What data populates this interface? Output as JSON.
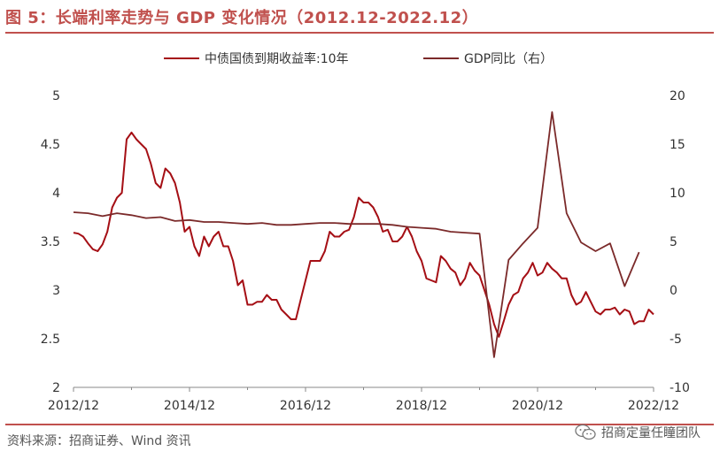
{
  "header": {
    "title": "图 5：长端利率走势与 GDP 变化情况（2012.12-2022.12）"
  },
  "footer": {
    "source": "资料来源：招商证券、Wind 资讯",
    "watermark": "招商定量任瞳团队"
  },
  "icons": {
    "watermark_icon": "wechat-icon"
  },
  "colors": {
    "accent": "#c0504d",
    "yield_series": "#a50f15",
    "gdp_series": "#7b2a2a"
  },
  "chart_data": {
    "type": "line",
    "x_axis": {
      "ticks": [
        "2012/12",
        "2014/12",
        "2016/12",
        "2018/12",
        "2020/12",
        "2022/12"
      ],
      "range": [
        "2012-12",
        "2022-12"
      ]
    },
    "y_left": {
      "ticks": [
        "2",
        "2.5",
        "3",
        "3.5",
        "4",
        "4.5",
        "5"
      ],
      "ylim": [
        2,
        5
      ]
    },
    "y_right": {
      "ticks": [
        "-10",
        "-5",
        "0",
        "5",
        "10",
        "15",
        "20"
      ],
      "ylim": [
        -10,
        20
      ]
    },
    "grid": false,
    "legend_position": "top-center",
    "series": [
      {
        "name": "中债国债到期收益率:10年",
        "axis": "left",
        "points": [
          [
            "2012-12",
            3.59
          ],
          [
            "2013-01",
            3.58
          ],
          [
            "2013-02",
            3.55
          ],
          [
            "2013-03",
            3.48
          ],
          [
            "2013-04",
            3.42
          ],
          [
            "2013-05",
            3.4
          ],
          [
            "2013-06",
            3.47
          ],
          [
            "2013-07",
            3.6
          ],
          [
            "2013-08",
            3.85
          ],
          [
            "2013-09",
            3.95
          ],
          [
            "2013-10",
            4.0
          ],
          [
            "2013-11",
            4.55
          ],
          [
            "2013-12",
            4.62
          ],
          [
            "2014-01",
            4.55
          ],
          [
            "2014-02",
            4.5
          ],
          [
            "2014-03",
            4.45
          ],
          [
            "2014-04",
            4.3
          ],
          [
            "2014-05",
            4.1
          ],
          [
            "2014-06",
            4.05
          ],
          [
            "2014-07",
            4.25
          ],
          [
            "2014-08",
            4.2
          ],
          [
            "2014-09",
            4.1
          ],
          [
            "2014-10",
            3.9
          ],
          [
            "2014-11",
            3.6
          ],
          [
            "2014-12",
            3.65
          ],
          [
            "2015-01",
            3.45
          ],
          [
            "2015-02",
            3.35
          ],
          [
            "2015-03",
            3.55
          ],
          [
            "2015-04",
            3.45
          ],
          [
            "2015-05",
            3.55
          ],
          [
            "2015-06",
            3.6
          ],
          [
            "2015-07",
            3.45
          ],
          [
            "2015-08",
            3.45
          ],
          [
            "2015-09",
            3.3
          ],
          [
            "2015-10",
            3.05
          ],
          [
            "2015-11",
            3.1
          ],
          [
            "2015-12",
            2.85
          ],
          [
            "2016-01",
            2.85
          ],
          [
            "2016-02",
            2.88
          ],
          [
            "2016-03",
            2.88
          ],
          [
            "2016-04",
            2.95
          ],
          [
            "2016-05",
            2.9
          ],
          [
            "2016-06",
            2.9
          ],
          [
            "2016-07",
            2.8
          ],
          [
            "2016-08",
            2.75
          ],
          [
            "2016-09",
            2.7
          ],
          [
            "2016-10",
            2.7
          ],
          [
            "2016-11",
            2.9
          ],
          [
            "2016-12",
            3.1
          ],
          [
            "2017-01",
            3.3
          ],
          [
            "2017-02",
            3.3
          ],
          [
            "2017-03",
            3.3
          ],
          [
            "2017-04",
            3.4
          ],
          [
            "2017-05",
            3.6
          ],
          [
            "2017-06",
            3.55
          ],
          [
            "2017-07",
            3.55
          ],
          [
            "2017-08",
            3.6
          ],
          [
            "2017-09",
            3.62
          ],
          [
            "2017-10",
            3.75
          ],
          [
            "2017-11",
            3.95
          ],
          [
            "2017-12",
            3.9
          ],
          [
            "2018-01",
            3.9
          ],
          [
            "2018-02",
            3.85
          ],
          [
            "2018-03",
            3.75
          ],
          [
            "2018-04",
            3.6
          ],
          [
            "2018-05",
            3.62
          ],
          [
            "2018-06",
            3.5
          ],
          [
            "2018-07",
            3.5
          ],
          [
            "2018-08",
            3.55
          ],
          [
            "2018-09",
            3.65
          ],
          [
            "2018-10",
            3.55
          ],
          [
            "2018-11",
            3.4
          ],
          [
            "2018-12",
            3.3
          ],
          [
            "2019-01",
            3.12
          ],
          [
            "2019-02",
            3.1
          ],
          [
            "2019-03",
            3.08
          ],
          [
            "2019-04",
            3.35
          ],
          [
            "2019-05",
            3.3
          ],
          [
            "2019-06",
            3.22
          ],
          [
            "2019-07",
            3.18
          ],
          [
            "2019-08",
            3.05
          ],
          [
            "2019-09",
            3.12
          ],
          [
            "2019-10",
            3.28
          ],
          [
            "2019-11",
            3.2
          ],
          [
            "2019-12",
            3.15
          ],
          [
            "2020-01",
            3.0
          ],
          [
            "2020-02",
            2.85
          ],
          [
            "2020-03",
            2.65
          ],
          [
            "2020-04",
            2.52
          ],
          [
            "2020-05",
            2.68
          ],
          [
            "2020-06",
            2.85
          ],
          [
            "2020-07",
            2.95
          ],
          [
            "2020-08",
            2.98
          ],
          [
            "2020-09",
            3.12
          ],
          [
            "2020-10",
            3.18
          ],
          [
            "2020-11",
            3.28
          ],
          [
            "2020-12",
            3.15
          ],
          [
            "2021-01",
            3.18
          ],
          [
            "2021-02",
            3.28
          ],
          [
            "2021-03",
            3.22
          ],
          [
            "2021-04",
            3.18
          ],
          [
            "2021-05",
            3.12
          ],
          [
            "2021-06",
            3.12
          ],
          [
            "2021-07",
            2.95
          ],
          [
            "2021-08",
            2.85
          ],
          [
            "2021-09",
            2.88
          ],
          [
            "2021-10",
            2.98
          ],
          [
            "2021-11",
            2.88
          ],
          [
            "2021-12",
            2.78
          ],
          [
            "2022-01",
            2.75
          ],
          [
            "2022-02",
            2.8
          ],
          [
            "2022-03",
            2.8
          ],
          [
            "2022-04",
            2.82
          ],
          [
            "2022-05",
            2.75
          ],
          [
            "2022-06",
            2.8
          ],
          [
            "2022-07",
            2.78
          ],
          [
            "2022-08",
            2.65
          ],
          [
            "2022-09",
            2.68
          ],
          [
            "2022-10",
            2.68
          ],
          [
            "2022-11",
            2.8
          ],
          [
            "2022-12",
            2.75
          ]
        ]
      },
      {
        "name": "GDP同比（右）",
        "axis": "right",
        "points": [
          [
            "2012-12",
            8.0
          ],
          [
            "2013-03",
            7.9
          ],
          [
            "2013-06",
            7.6
          ],
          [
            "2013-09",
            7.9
          ],
          [
            "2013-12",
            7.7
          ],
          [
            "2014-03",
            7.4
          ],
          [
            "2014-06",
            7.5
          ],
          [
            "2014-09",
            7.1
          ],
          [
            "2014-12",
            7.2
          ],
          [
            "2015-03",
            7.0
          ],
          [
            "2015-06",
            7.0
          ],
          [
            "2015-09",
            6.9
          ],
          [
            "2015-12",
            6.8
          ],
          [
            "2016-03",
            6.9
          ],
          [
            "2016-06",
            6.7
          ],
          [
            "2016-09",
            6.7
          ],
          [
            "2016-12",
            6.8
          ],
          [
            "2017-03",
            6.9
          ],
          [
            "2017-06",
            6.9
          ],
          [
            "2017-09",
            6.8
          ],
          [
            "2017-12",
            6.8
          ],
          [
            "2018-03",
            6.8
          ],
          [
            "2018-06",
            6.7
          ],
          [
            "2018-09",
            6.5
          ],
          [
            "2018-12",
            6.4
          ],
          [
            "2019-03",
            6.3
          ],
          [
            "2019-06",
            6.0
          ],
          [
            "2019-09",
            5.9
          ],
          [
            "2019-12",
            5.8
          ],
          [
            "2020-03",
            -6.9
          ],
          [
            "2020-06",
            3.1
          ],
          [
            "2020-09",
            4.8
          ],
          [
            "2020-12",
            6.4
          ],
          [
            "2021-03",
            18.3
          ],
          [
            "2021-06",
            7.9
          ],
          [
            "2021-09",
            4.9
          ],
          [
            "2021-12",
            4.0
          ],
          [
            "2022-03",
            4.8
          ],
          [
            "2022-06",
            0.4
          ],
          [
            "2022-09",
            3.9
          ]
        ]
      }
    ]
  }
}
